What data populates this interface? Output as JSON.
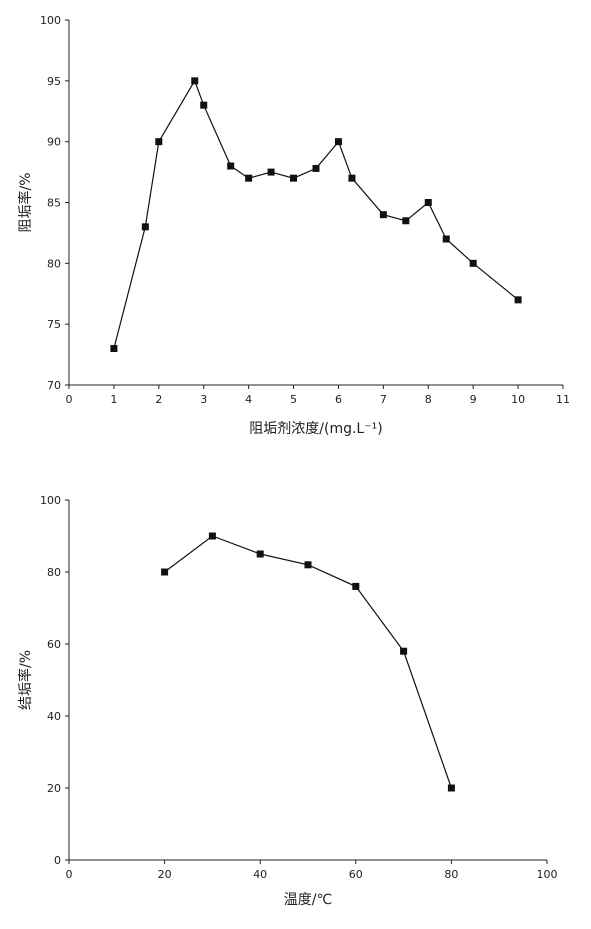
{
  "chart_data": [
    {
      "type": "line",
      "xlabel": "阻垢剂浓度/(mg.L⁻¹)",
      "ylabel": "阻垢率/%",
      "xlim": [
        0,
        11
      ],
      "ylim": [
        70,
        100
      ],
      "xticks": [
        0,
        1,
        2,
        3,
        4,
        5,
        6,
        7,
        8,
        9,
        10,
        11
      ],
      "yticks": [
        70,
        75,
        80,
        85,
        90,
        95,
        100
      ],
      "grid": false,
      "marker": "square",
      "series": [
        {
          "x": [
            1,
            1.7,
            2,
            2.8,
            3,
            3.6,
            4,
            4.5,
            5,
            5.5,
            6,
            6.3,
            7,
            7.5,
            8,
            8.4,
            9,
            10
          ],
          "y": [
            73,
            83,
            90,
            95,
            93,
            88,
            87,
            87.5,
            87,
            87.8,
            90,
            87,
            84,
            83.5,
            85,
            82,
            80,
            77
          ]
        }
      ]
    },
    {
      "type": "line",
      "xlabel": "温度/℃",
      "ylabel": "结垢率/%",
      "xlim": [
        0,
        100
      ],
      "ylim": [
        0,
        100
      ],
      "xticks": [
        0,
        20,
        40,
        60,
        80,
        100
      ],
      "yticks": [
        0,
        20,
        40,
        60,
        80,
        100
      ],
      "grid": false,
      "marker": "square",
      "series": [
        {
          "x": [
            20,
            30,
            40,
            50,
            60,
            70,
            80
          ],
          "y": [
            80,
            90,
            85,
            82,
            76,
            58,
            20
          ]
        }
      ]
    }
  ]
}
